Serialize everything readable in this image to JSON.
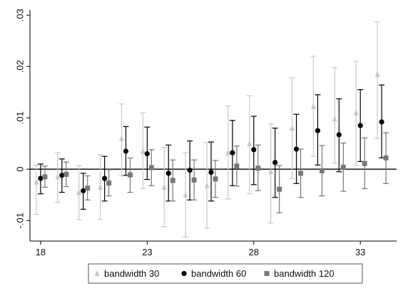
{
  "chart_data": {
    "type": "scatter",
    "subtype": "point estimates with confidence intervals",
    "xlim": [
      17.5,
      34.7
    ],
    "ylim": [
      -0.014,
      0.031
    ],
    "x_ticks": [
      18,
      23,
      28,
      33
    ],
    "x_tick_labels": [
      "18",
      "23",
      "28",
      "33"
    ],
    "y_ticks": [
      -0.01,
      0,
      0.01,
      0.02,
      0.03
    ],
    "y_tick_labels": [
      "-.01",
      "0",
      ".01",
      ".02",
      ".03"
    ],
    "zero_line": true,
    "grid": false,
    "legend_position": "bottom",
    "series": [
      {
        "name": "bandwidth 30",
        "marker": "triangle",
        "color": "#c8c8c8",
        "x": [
          18,
          19,
          20,
          21,
          22,
          23,
          24,
          25,
          26,
          27,
          28,
          29,
          30,
          31,
          32,
          33,
          34
        ],
        "y": [
          -0.0025,
          -0.0015,
          -0.0045,
          -0.0035,
          0.006,
          0.0035,
          -0.0035,
          -0.005,
          -0.0032,
          0.0032,
          0.005,
          -0.0005,
          0.008,
          0.0122,
          0.0098,
          0.011,
          0.0185
        ],
        "ci_low": [
          -0.0088,
          -0.0065,
          -0.0098,
          -0.0098,
          -0.0013,
          -0.0038,
          -0.0112,
          -0.0132,
          -0.0115,
          -0.0058,
          -0.0048,
          -0.0105,
          -0.0018,
          0.0025,
          0.0012,
          0.0008,
          0.006
        ],
        "ci_high": [
          0.0008,
          0.0032,
          0.0007,
          0.0028,
          0.0127,
          0.011,
          0.0042,
          0.0032,
          0.0052,
          0.0123,
          0.0143,
          0.0088,
          0.0178,
          0.022,
          0.0198,
          0.021,
          0.0287
        ]
      },
      {
        "name": "bandwidth 60",
        "marker": "circle",
        "color": "#000000",
        "x": [
          18,
          19,
          20,
          21,
          22,
          23,
          24,
          25,
          26,
          27,
          28,
          29,
          30,
          31,
          32,
          33,
          34
        ],
        "y": [
          -0.0018,
          -0.0012,
          -0.0042,
          -0.0018,
          0.0035,
          0.003,
          -0.0008,
          -0.0002,
          -0.0006,
          0.0032,
          0.0038,
          0.0013,
          0.0039,
          0.0075,
          0.0067,
          0.0085,
          0.0092
        ],
        "ci_low": [
          -0.0048,
          -0.0045,
          -0.0078,
          -0.0062,
          -0.0012,
          -0.002,
          -0.0062,
          -0.006,
          -0.0062,
          -0.0032,
          -0.003,
          -0.0055,
          -0.0028,
          0.0008,
          -0.0005,
          0.0015,
          0.0022
        ],
        "ci_high": [
          0.001,
          0.002,
          -0.0008,
          0.0025,
          0.0083,
          0.0082,
          0.0047,
          0.0055,
          0.0053,
          0.0095,
          0.0103,
          0.008,
          0.0107,
          0.0145,
          0.0137,
          0.0155,
          0.0164
        ]
      },
      {
        "name": "bandwidth 120",
        "marker": "square",
        "color": "#777777",
        "x": [
          18,
          19,
          20,
          21,
          22,
          23,
          24,
          25,
          26,
          27,
          28,
          29,
          30,
          31,
          32,
          33,
          34
        ],
        "y": [
          -0.0015,
          -0.001,
          -0.0037,
          -0.0027,
          -0.0011,
          0.0003,
          -0.0022,
          -0.0021,
          -0.0019,
          0.0006,
          0.0002,
          -0.0039,
          -0.0008,
          -0.0003,
          0.0004,
          0.0011,
          0.0022
        ],
        "ci_low": [
          -0.0035,
          -0.0034,
          -0.006,
          -0.0052,
          -0.0045,
          -0.0032,
          -0.0062,
          -0.006,
          -0.0055,
          -0.0033,
          -0.0042,
          -0.0085,
          -0.0055,
          -0.0052,
          -0.0043,
          -0.0038,
          -0.0028
        ],
        "ci_high": [
          0.0006,
          0.0014,
          -0.0013,
          -0.0001,
          0.0022,
          0.0038,
          0.0018,
          0.0018,
          0.0017,
          0.0045,
          0.0047,
          0.0007,
          0.0039,
          0.0046,
          0.0051,
          0.0061,
          0.0071
        ]
      }
    ]
  }
}
